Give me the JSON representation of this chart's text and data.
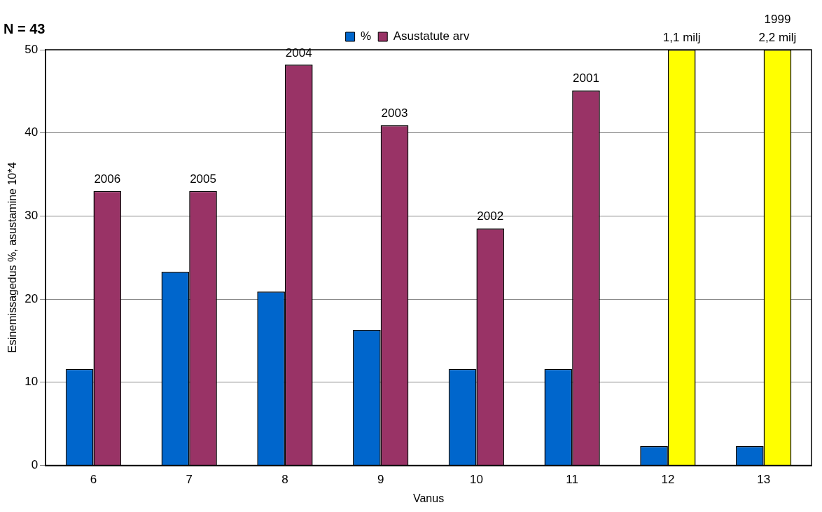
{
  "chart_data": {
    "type": "bar",
    "title": "N = 43",
    "xlabel": "Vanus",
    "ylabel": "Esinemissagedus %, asustamine 10*4",
    "categories": [
      "6",
      "7",
      "8",
      "9",
      "10",
      "11",
      "12",
      "13"
    ],
    "series": [
      {
        "name": "%",
        "color": "#0066cc",
        "values": [
          11.6,
          23.3,
          20.9,
          16.3,
          11.6,
          11.6,
          2.3,
          2.3
        ]
      },
      {
        "name": "Asustatute arv",
        "color": "#993366",
        "colors": [
          "#993366",
          "#993366",
          "#993366",
          "#993366",
          "#993366",
          "#993366",
          "#ffff00",
          "#ffff00"
        ],
        "values": [
          33,
          33,
          48.2,
          40.9,
          28.5,
          45.1,
          50,
          50
        ]
      }
    ],
    "annotations": [
      {
        "text": "2006",
        "x": "6",
        "y": 33
      },
      {
        "text": "2005",
        "x": "7",
        "y": 33
      },
      {
        "text": "2004",
        "x": "8",
        "y": 48.2
      },
      {
        "text": "2003",
        "x": "9",
        "y": 40.9
      },
      {
        "text": "2002",
        "x": "10",
        "y": 28.5
      },
      {
        "text": "2001",
        "x": "11",
        "y": 45.1
      },
      {
        "text": "1,1 milj",
        "x": "12",
        "y": 50
      },
      {
        "text": "1999\n2,2 milj",
        "x": "13",
        "y": 50
      }
    ],
    "ylim": [
      0,
      50
    ],
    "yticks": [
      0,
      10,
      20,
      30,
      40,
      50
    ],
    "grid": "y",
    "legend": "top"
  }
}
